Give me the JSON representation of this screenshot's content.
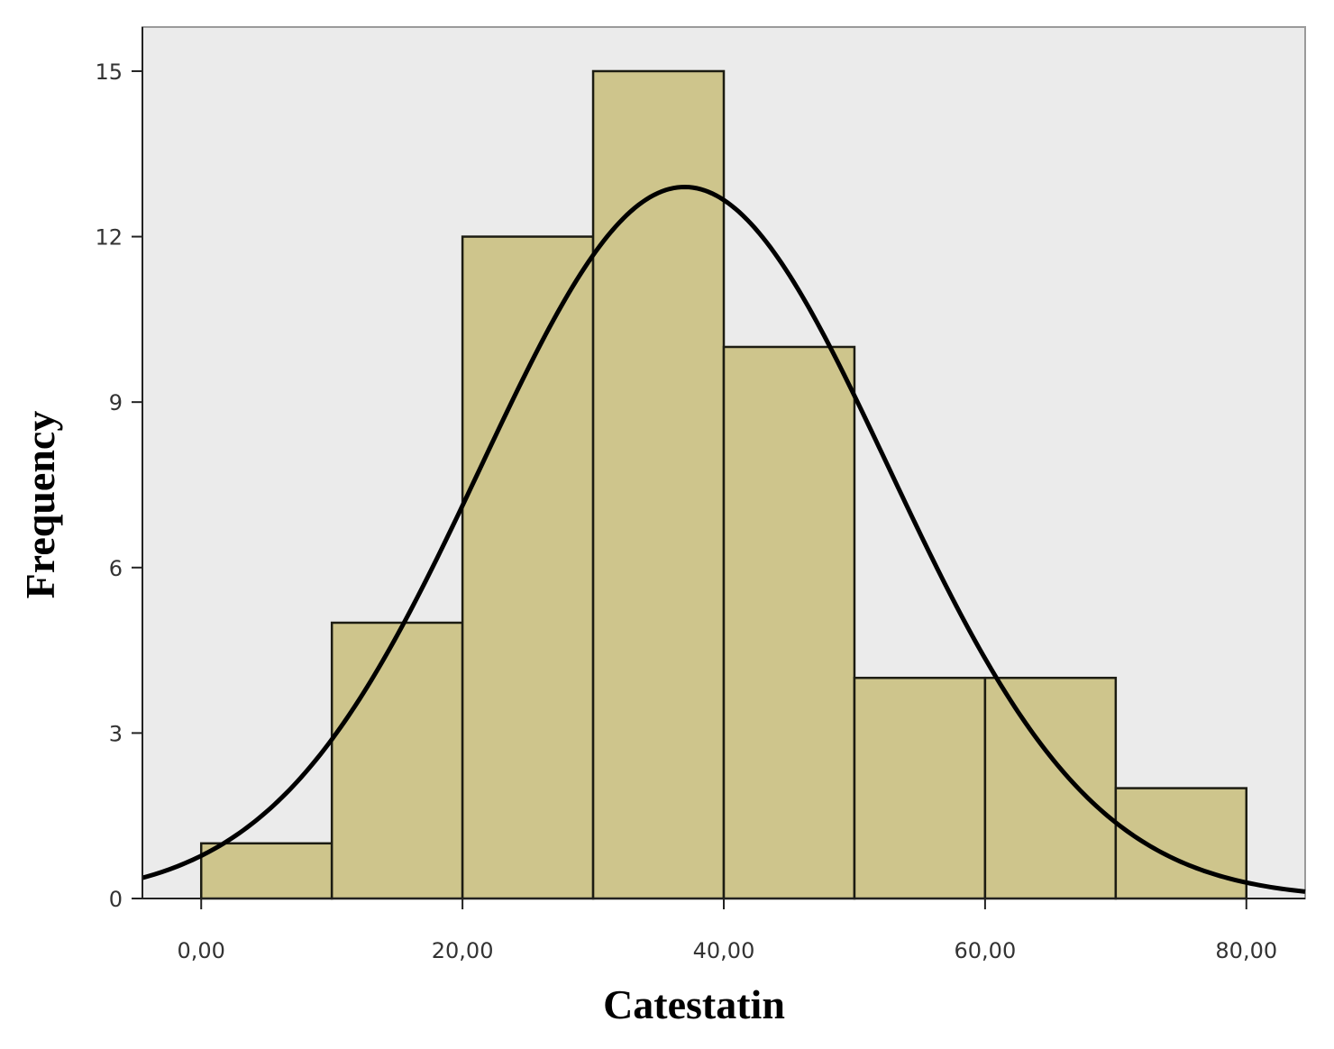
{
  "chart_data": {
    "type": "bar",
    "subtype": "histogram",
    "xlabel": "Catestatin",
    "ylabel": "Frequency",
    "bins": [
      {
        "start": 0,
        "end": 10,
        "count": 1
      },
      {
        "start": 10,
        "end": 20,
        "count": 5
      },
      {
        "start": 20,
        "end": 30,
        "count": 12
      },
      {
        "start": 30,
        "end": 40,
        "count": 15
      },
      {
        "start": 40,
        "end": 50,
        "count": 10
      },
      {
        "start": 50,
        "end": 60,
        "count": 4
      },
      {
        "start": 60,
        "end": 70,
        "count": 4
      },
      {
        "start": 70,
        "end": 80,
        "count": 2
      }
    ],
    "normal_curve": {
      "mean": 37,
      "peak": 12.9,
      "sd": 15.6
    },
    "xlim": [
      -4.5,
      84.5
    ],
    "ylim": [
      0,
      15.8
    ],
    "x_ticks": [
      {
        "value": 0,
        "label": "0,00"
      },
      {
        "value": 20,
        "label": "20,00"
      },
      {
        "value": 40,
        "label": "40,00"
      },
      {
        "value": 60,
        "label": "60,00"
      },
      {
        "value": 80,
        "label": "80,00"
      }
    ],
    "y_ticks": [
      {
        "value": 0,
        "label": "0"
      },
      {
        "value": 3,
        "label": "3"
      },
      {
        "value": 6,
        "label": "6"
      },
      {
        "value": 9,
        "label": "9"
      },
      {
        "value": 12,
        "label": "12"
      },
      {
        "value": 15,
        "label": "15"
      }
    ],
    "grid": false,
    "colors": {
      "plot_background": "#ebebeb",
      "bar_fill": "#cec58c",
      "bar_stroke": "#1c1c12",
      "curve": "#000000"
    }
  }
}
